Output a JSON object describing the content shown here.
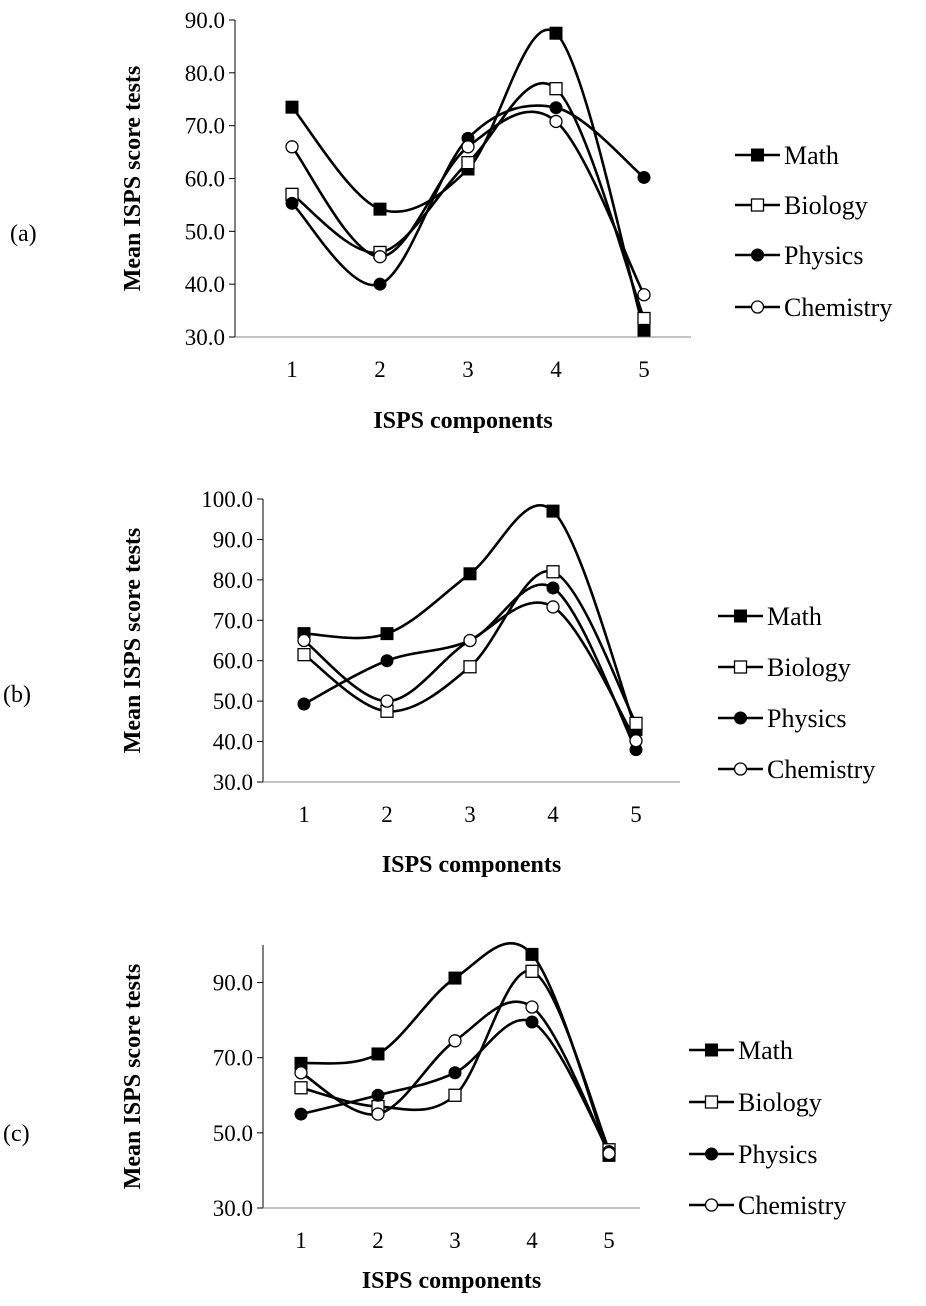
{
  "chart_data": [
    {
      "type": "line",
      "panel_label": "(a)",
      "xlabel": "ISPS components",
      "ylabel": "Mean ISPS score tests",
      "categories": [
        "1",
        "2",
        "3",
        "4",
        "5"
      ],
      "ylim": [
        30,
        90
      ],
      "yticks": [
        "30.0",
        "40.0",
        "50.0",
        "60.0",
        "70.0",
        "80.0",
        "90.0"
      ],
      "grid": false,
      "legend_position": "right",
      "series": [
        {
          "name": "Math",
          "marker": "square-filled",
          "values": [
            73.5,
            54.2,
            61.8,
            87.5,
            31.3
          ]
        },
        {
          "name": "Biology",
          "marker": "square-open",
          "values": [
            57.0,
            46.0,
            63.0,
            77.0,
            33.5
          ]
        },
        {
          "name": "Physics",
          "marker": "circle-filled",
          "values": [
            55.3,
            40.0,
            67.6,
            73.4,
            60.2
          ]
        },
        {
          "name": "Chemistry",
          "marker": "circle-open",
          "values": [
            66.0,
            45.2,
            66.0,
            70.8,
            38.0
          ]
        }
      ]
    },
    {
      "type": "line",
      "panel_label": "(b)",
      "xlabel": "ISPS components",
      "ylabel": "Mean ISPS score tests",
      "categories": [
        "1",
        "2",
        "3",
        "4",
        "5"
      ],
      "ylim": [
        30,
        100
      ],
      "yticks": [
        "30.0",
        "40.0",
        "50.0",
        "60.0",
        "70.0",
        "80.0",
        "90.0",
        "100.0"
      ],
      "grid": false,
      "legend_position": "right",
      "series": [
        {
          "name": "Math",
          "marker": "square-filled",
          "values": [
            66.7,
            66.7,
            81.5,
            97.0,
            43.0
          ]
        },
        {
          "name": "Biology",
          "marker": "square-open",
          "values": [
            61.5,
            47.5,
            58.5,
            82.0,
            44.5
          ]
        },
        {
          "name": "Physics",
          "marker": "circle-filled",
          "values": [
            49.3,
            60.0,
            65.0,
            78.0,
            38.0
          ]
        },
        {
          "name": "Chemistry",
          "marker": "circle-open",
          "values": [
            65.0,
            50.0,
            65.0,
            73.3,
            40.2
          ]
        }
      ]
    },
    {
      "type": "line",
      "panel_label": "(c)",
      "xlabel": "ISPS components",
      "ylabel": "Mean ISPS score tests",
      "categories": [
        "1",
        "2",
        "3",
        "4",
        "5"
      ],
      "ylim": [
        30,
        100
      ],
      "yticks": [
        "30.0",
        "50.0",
        "70.0",
        "90.0"
      ],
      "grid": false,
      "legend_position": "right",
      "series": [
        {
          "name": "Math",
          "marker": "square-filled",
          "values": [
            68.5,
            71.0,
            91.2,
            97.5,
            44.0
          ]
        },
        {
          "name": "Biology",
          "marker": "square-open",
          "values": [
            62.0,
            57.0,
            60.0,
            93.0,
            45.5
          ]
        },
        {
          "name": "Physics",
          "marker": "circle-filled",
          "values": [
            55.0,
            60.0,
            66.0,
            79.5,
            45.0
          ]
        },
        {
          "name": "Chemistry",
          "marker": "circle-open",
          "values": [
            66.0,
            55.0,
            74.5,
            83.5,
            44.5
          ]
        }
      ]
    }
  ]
}
